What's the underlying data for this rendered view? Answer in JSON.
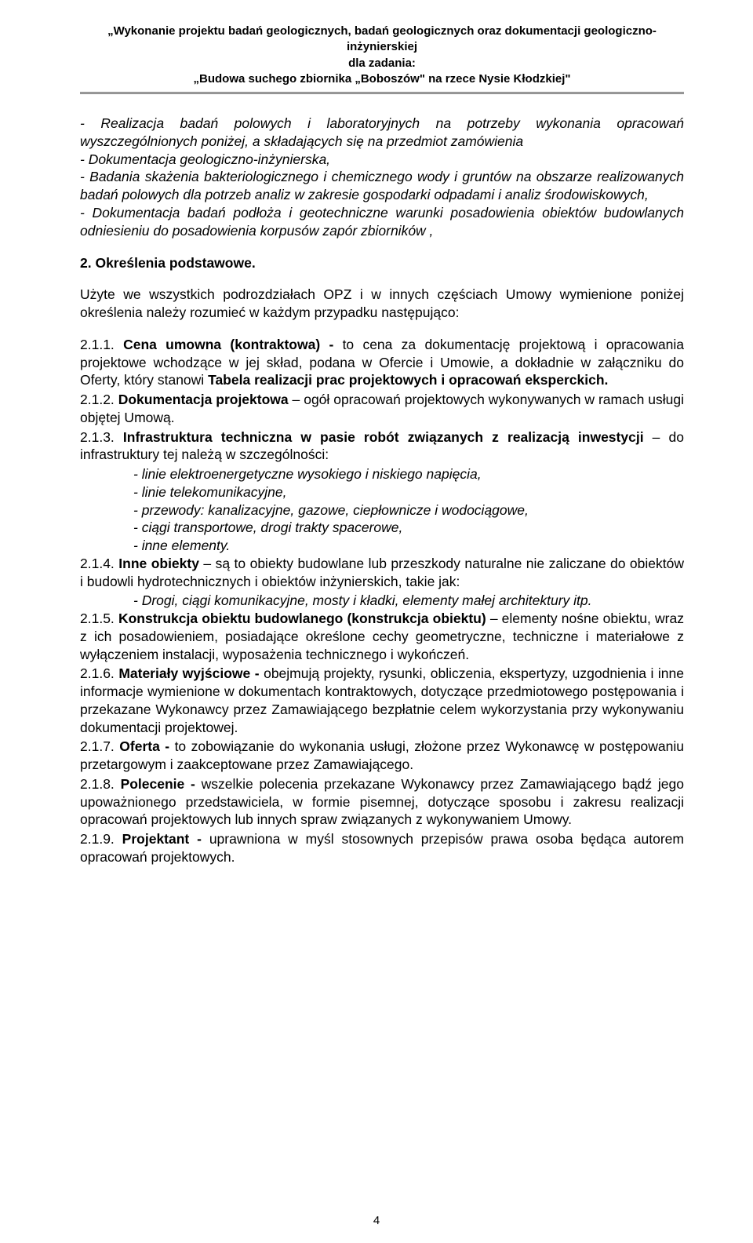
{
  "header": {
    "line1": "„Wykonanie projektu badań geologicznych, badań geologicznych oraz dokumentacji geologiczno-inżynierskiej",
    "line2": "dla zadania:",
    "line3": "„Budowa suchego zbiornika „Boboszów\" na rzece Nysie Kłodzkiej\""
  },
  "intro": {
    "p1": "- Realizacja badań polowych i laboratoryjnych na potrzeby wykonania opracowań wyszczególnionych poniżej, a składających się na przedmiot zamówienia",
    "p2": "- Dokumentacja geologiczno-inżynierska,",
    "p3": "- Badania skażenia bakteriologicznego i chemicznego wody i gruntów na obszarze realizowanych badań polowych dla potrzeb analiz w zakresie gospodarki odpadami i analiz środowiskowych,",
    "p4": "- Dokumentacja badań podłoża i geotechniczne warunki posadowienia obiektów budowlanych odniesieniu do posadowienia korpusów zapór zbiorników ,"
  },
  "section2": {
    "title": "2. Określenia podstawowe.",
    "lead": "Użyte we wszystkich podrozdziałach OPZ i w innych częściach Umowy wymienione poniżej określenia należy rozumieć w każdym przypadku następująco:"
  },
  "defs": {
    "d1": {
      "num": "2.1.1.",
      "term": "Cena umowna (kontraktowa) -",
      "body": " to cena za dokumentację projektową i opracowania projektowe wchodzące w jej skład, podana w Ofercie i Umowie, a dokładnie w załączniku do Oferty, który stanowi ",
      "boldTail": "Tabela realizacji prac projektowych i opracowań eksperckich."
    },
    "d2": {
      "num": "2.1.2.",
      "term": "Dokumentacja projektowa",
      "body": " – ogół opracowań projektowych wykonywanych w ramach usługi objętej Umową."
    },
    "d3": {
      "num": "2.1.3.",
      "term": "Infrastruktura techniczna w pasie robót związanych z realizacją inwestycji",
      "body": " – do infrastruktury tej należą w szczególności:",
      "items": [
        "- linie elektroenergetyczne wysokiego i niskiego napięcia,",
        "- linie telekomunikacyjne,",
        "- przewody: kanalizacyjne, gazowe, ciepłownicze i wodociągowe,",
        "- ciągi transportowe, drogi trakty spacerowe,",
        "- inne elementy."
      ]
    },
    "d4": {
      "num": "2.1.4.",
      "term": "Inne obiekty",
      "body": " – są to obiekty budowlane lub przeszkody naturalne nie zaliczane do obiektów i budowli hydrotechnicznych i obiektów inżynierskich, takie jak:",
      "sub": "- Drogi, ciągi komunikacyjne, mosty i kładki, elementy małej architektury itp."
    },
    "d5": {
      "num": "2.1.5.",
      "term": "Konstrukcja obiektu budowlanego (konstrukcja obiektu)",
      "body": " – elementy nośne obiektu, wraz z ich posadowieniem, posiadające określone cechy geometryczne, techniczne i materiałowe z wyłączeniem instalacji, wyposażenia technicznego i wykończeń."
    },
    "d6": {
      "num": "2.1.6.",
      "term": "Materiały wyjściowe -",
      "body": " obejmują projekty, rysunki, obliczenia, ekspertyzy, uzgodnienia i inne informacje wymienione w dokumentach kontraktowych, dotyczące przedmiotowego postępowania i przekazane Wykonawcy przez Zamawiającego bezpłatnie celem wykorzystania przy wykonywaniu dokumentacji projektowej."
    },
    "d7": {
      "num": "2.1.7.",
      "term": "Oferta -",
      "body": " to zobowiązanie do wykonania usługi, złożone przez Wykonawcę w postępowaniu przetargowym i zaakceptowane przez Zamawiającego."
    },
    "d8": {
      "num": "2.1.8.",
      "term": "Polecenie -",
      "body": " wszelkie polecenia przekazane Wykonawcy przez Zamawiającego bądź jego upoważnionego przedstawiciela, w formie pisemnej, dotyczące sposobu i zakresu realizacji opracowań projektowych lub innych spraw związanych z wykonywaniem Umowy."
    },
    "d9": {
      "num": "2.1.9.",
      "term": "Projektant -",
      "body": " uprawniona w myśl stosownych przepisów prawa osoba będąca autorem opracowań projektowych."
    }
  },
  "pageNumber": "4",
  "colors": {
    "text": "#000000",
    "background": "#ffffff",
    "rule": "#5b5b5b"
  },
  "typography": {
    "header_fontsize_pt": 11,
    "body_fontsize_pt": 13,
    "font_family": "Arial"
  }
}
